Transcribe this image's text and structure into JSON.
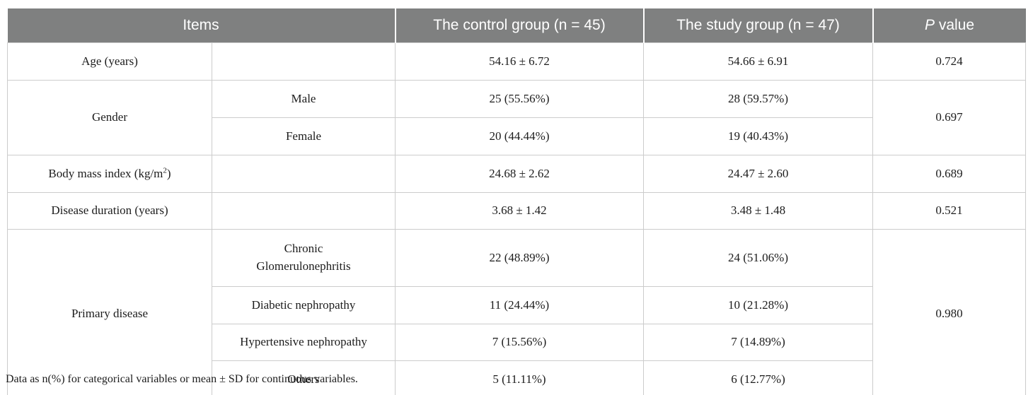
{
  "table": {
    "header": {
      "items": "Items",
      "control": "The control group (n = 45)",
      "study": "The study group (n = 47)",
      "p_italic": "P",
      "p_rest": " value"
    },
    "rows": {
      "age": {
        "label": "Age (years)",
        "control": "54.16 ± 6.72",
        "study": "54.66 ± 6.91",
        "p": "0.724"
      },
      "gender": {
        "label": "Gender",
        "p": "0.697",
        "male": {
          "label": "Male",
          "control": "25 (55.56%)",
          "study": "28 (59.57%)"
        },
        "female": {
          "label": "Female",
          "control": "20 (44.44%)",
          "study": "19 (40.43%)"
        }
      },
      "bmi": {
        "label_base": "Body mass index (kg/m",
        "label_sup": "2",
        "label_close": ")",
        "control": "24.68 ± 2.62",
        "study": "24.47 ± 2.60",
        "p": "0.689"
      },
      "duration": {
        "label": "Disease duration (years)",
        "control": "3.68 ± 1.42",
        "study": "3.48 ± 1.48",
        "p": "0.521"
      },
      "primary": {
        "label": "Primary disease",
        "p": "0.980",
        "chronic": {
          "label": "Chronic Glomerulonephritis",
          "control": "22 (48.89%)",
          "study": "24 (51.06%)"
        },
        "diabetic": {
          "label": "Diabetic nephropathy",
          "control": "11 (24.44%)",
          "study": "10 (21.28%)"
        },
        "hypertensive": {
          "label": "Hypertensive nephropathy",
          "control": "7 (15.56%)",
          "study": "7 (14.89%)"
        },
        "others": {
          "label": "Others",
          "control": "5 (11.11%)",
          "study": "6 (12.77%)"
        }
      }
    },
    "footnote": "Data as n(%) for categorical variables or mean ± SD for continuous variables."
  },
  "colors": {
    "header_bg": "#7f8080",
    "header_text": "#ffffff",
    "body_text": "#1c1c1c",
    "border": "#cccccc"
  }
}
